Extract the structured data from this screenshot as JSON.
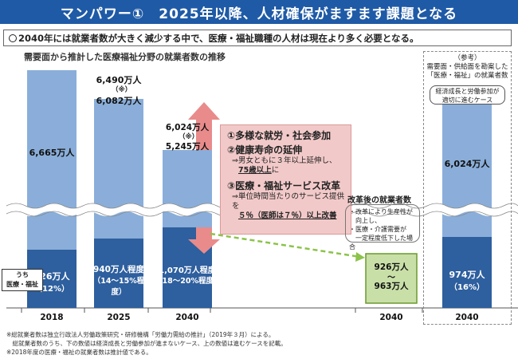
{
  "title": "マンパワー①　2025年以降、人材確保がますます課題となる",
  "summary": "2040年には就業者数が大きく減少する中で、医療・福祉職種の人材は現在より多く必要となる。",
  "chart_data": {
    "type": "bar",
    "title": "需要面から推計した医療福祉分野の就業者数の推移",
    "categories": [
      "2018",
      "2025",
      "2040"
    ],
    "series": [
      {
        "name": "うち医療・福祉",
        "values": [
          826,
          940,
          1070
        ],
        "labels": [
          "826万人",
          "940万人程度",
          "1,070万人程度"
        ],
        "sub_labels": [
          "（12%）",
          "（14～15%程度）",
          "（18～20%程度）"
        ]
      },
      {
        "name": "総就業者数",
        "values": [
          6665,
          6490,
          6024
        ],
        "labels": [
          "6,665万人",
          "6,490万人",
          "6,024万人"
        ],
        "low_labels": [
          "",
          "6,082万人",
          "5,245万人"
        ],
        "range_marks": [
          "",
          "（※）",
          "（※）"
        ]
      }
    ],
    "reform": {
      "category": "2040",
      "label": "改革後の就業者数",
      "range": [
        926,
        963
      ],
      "labels": [
        "926万人",
        "963万人"
      ],
      "range_mark": "～"
    },
    "reference": {
      "category": "2040",
      "total": 6024,
      "total_label": "6,024万人",
      "medical": 974,
      "medical_label": "974万人",
      "share_label": "（16%）"
    },
    "side_tag": [
      "うち",
      "医療・福祉"
    ]
  },
  "callout": {
    "h1": "①多様な就労・社会参加",
    "h2": "②健康寿命の延伸",
    "s2a": "⇒男女ともに３年以上延伸し、",
    "s2b": "75歳以上",
    "s2c": "に",
    "h3": "③医療・福祉サービス改革",
    "s3a": "⇒単位時間当たりのサービス提供を",
    "s3b": "５％（医師は７％）以上改善"
  },
  "inner_note": [
    "・改革により生産性が",
    "　向上し、",
    "・医療・介護需要が",
    "　一定程度低下した場合"
  ],
  "reference_box": {
    "head": [
      "（参考）",
      "需要面・供給面を勘案した",
      "「医療・福祉」の就業者数"
    ],
    "pill": [
      "経済成長と労働参加が",
      "適切に進むケース"
    ]
  },
  "footnotes": [
    "※総就業者数は独立行政法人労働政策研究・研修機構「労働力需給の推計」（2019年３月）による。",
    "　総就業者数のうち、下の数値は経済成長と労働参加が進まないケース、上の数値は進むケースを記載。",
    "※2018年度の医療・福祉の就業者数は推計値である。"
  ],
  "colors": {
    "title_bg": "#1f5aa6",
    "light_bar": "#8aaed9",
    "dark_bar": "#2e5f9e",
    "reform_bar": "#c9dfa8",
    "reform_border": "#6a9a2e",
    "arrow": "#e98b8b"
  }
}
